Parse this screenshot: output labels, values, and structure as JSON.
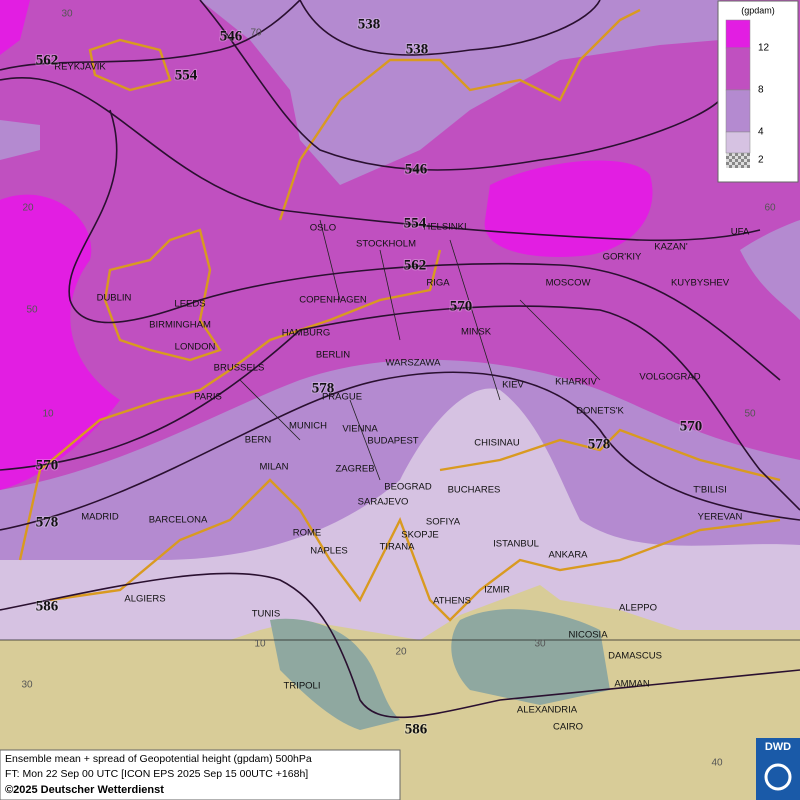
{
  "legend": {
    "title": "(gpdam)",
    "levels": [
      12,
      8,
      4,
      2
    ],
    "colors": [
      "#e21ee2",
      "#c050c0",
      "#b48ad0",
      "#d6c2e2"
    ]
  },
  "contour_labels": [
    538,
    546,
    538,
    562,
    554,
    546,
    554,
    562,
    570,
    578,
    570,
    578,
    570,
    578,
    586,
    586
  ],
  "graticule_labels": [
    30,
    70,
    20,
    50,
    10,
    60,
    50,
    40,
    30,
    20,
    10,
    30
  ],
  "cities": [
    "REYKJAVIK",
    "OSLO",
    "STOCKHOLM",
    "HELSINKI",
    "GOR'KIY",
    "KAZAN'",
    "UFA",
    "DUBLIN",
    "LEEDS",
    "COPENHAGEN",
    "RIGA",
    "MOSCOW",
    "KUYBYSHEV",
    "BIRMINGHAM",
    "HAMBURG",
    "MINSK",
    "LONDON",
    "BERLIN",
    "WARSZAWA",
    "BRUSSELS",
    "KIEV",
    "KHARKIV",
    "VOLGOGRAD",
    "PARIS",
    "PRAGUE",
    "DONETS'K",
    "MUNICH",
    "VIENNA",
    "BERN",
    "BUDAPEST",
    "CHISINAU",
    "MILAN",
    "ZAGREB",
    "BEOGRAD",
    "BUCHARES",
    "T'BILISI",
    "SARAJEVO",
    "MADRID",
    "BARCELONA",
    "SOFIYA",
    "YEREVAN",
    "ROME",
    "SKOPJE",
    "ISTANBUL",
    "NAPLES",
    "TIRANA",
    "ANKARA",
    "ALGIERS",
    "IZMIR",
    "ATHENS",
    "ALEPPO",
    "TUNIS",
    "NICOSIA",
    "DAMASCUS",
    "TRIPOLI",
    "AMMAN",
    "ALEXANDRIA",
    "CAIRO"
  ],
  "footer": {
    "line1": "Ensemble mean + spread of Geopotential height (gpdam) 500hPa",
    "line2": "FT: Mon 22 Sep 00 UTC [ICON EPS 2025 Sep 15 00UTC +168h]",
    "line3": "©2025 Deutscher Wetterdienst"
  },
  "logo": "DWD"
}
